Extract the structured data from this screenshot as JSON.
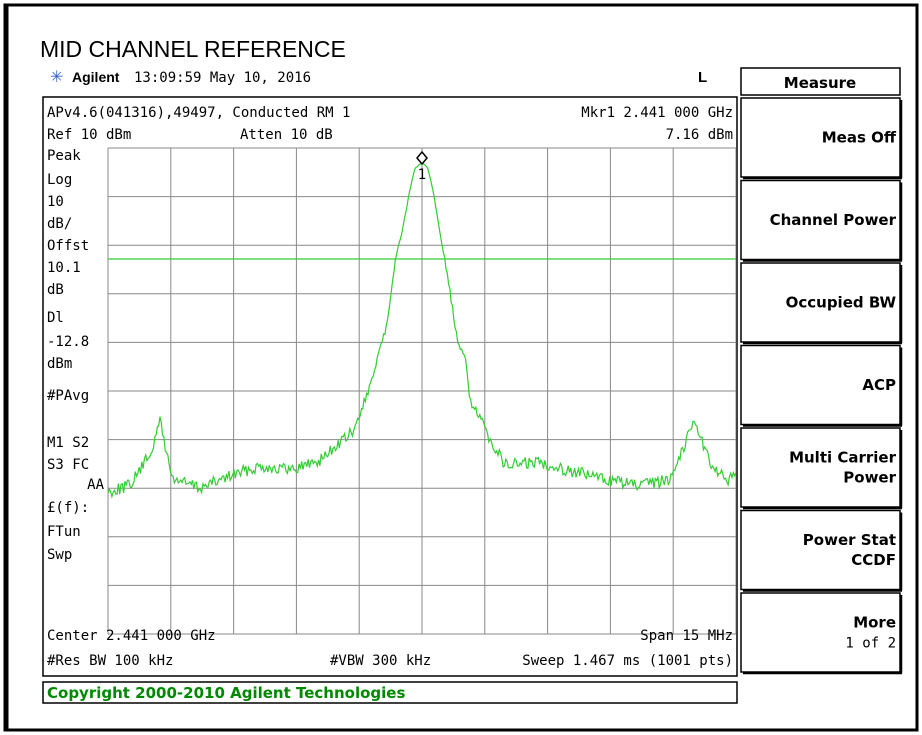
{
  "title": "MID CHANNEL REFERENCE",
  "status": {
    "brand": "Agilent",
    "time": "13:09:59  May 10, 2016",
    "mode": "L"
  },
  "screen": {
    "line1_left": "APv4.6(041316),49497, Conducted RM 1",
    "line1_right": "Mkr1  2.441 000 GHz",
    "ref": "Ref 10 dBm",
    "atten": "Atten 10 dB",
    "marker_value": "7.16 dBm",
    "left_labels": [
      "Peak",
      "Log",
      "10",
      "dB/",
      "Offst",
      "10.1",
      "dB",
      "Dl",
      "-12.8",
      "dBm",
      "#PAvg",
      "M1  S2",
      "S3  FC",
      "AA",
      "£(f):",
      "FTun",
      "Swp"
    ],
    "marker_label": "1",
    "center": "Center 2.441 000 GHz",
    "span": "Span 15 MHz",
    "rbw": "#Res BW 100 kHz",
    "vbw": "#VBW 300 kHz",
    "sweep": "Sweep 1.467 ms (1001 pts)"
  },
  "softkeys": {
    "header": "Measure",
    "keys": [
      [
        "Meas Off"
      ],
      [
        "Channel Power"
      ],
      [
        "Occupied BW"
      ],
      [
        "ACP"
      ],
      [
        "Multi Carrier",
        "Power"
      ],
      [
        "Power Stat",
        "CCDF"
      ],
      [
        "More",
        "1 of 2"
      ]
    ]
  },
  "copyright": "Copyright 2000-2010 Agilent Technologies"
}
